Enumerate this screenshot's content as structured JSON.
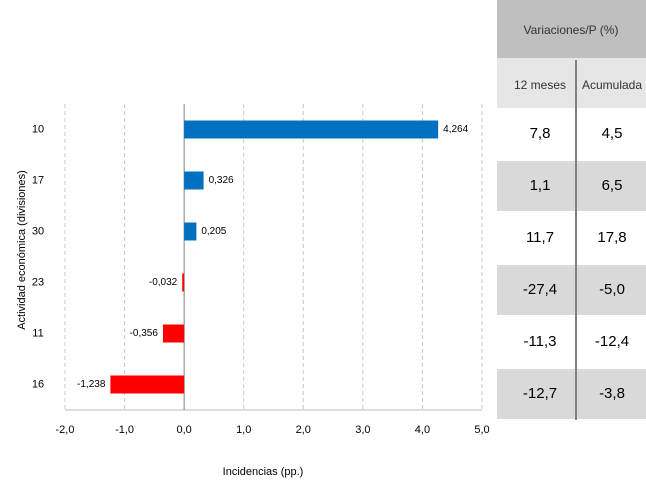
{
  "chart_data": {
    "type": "barh",
    "categories": [
      "10",
      "17",
      "30",
      "23",
      "11",
      "16"
    ],
    "values": [
      4.264,
      0.326,
      0.205,
      -0.032,
      -0.356,
      -1.238
    ],
    "value_labels": [
      "4,264",
      "0,326",
      "0,205",
      "-0,032",
      "-0,356",
      "-1,238"
    ],
    "positive_color": "#0070c0",
    "negative_color": "#ff0000",
    "xlim": [
      -2,
      5
    ],
    "xticks": [
      {
        "value": -2,
        "label": "-2,0"
      },
      {
        "value": -1,
        "label": "-1,0"
      },
      {
        "value": 0,
        "label": "0,0"
      },
      {
        "value": 1,
        "label": "1,0"
      },
      {
        "value": 2,
        "label": "2,0"
      },
      {
        "value": 3,
        "label": "3,0"
      },
      {
        "value": 4,
        "label": "4,0"
      },
      {
        "value": 5,
        "label": "5,0"
      }
    ],
    "xlabel": "Incidencias (pp.)",
    "ylabel": "Actividad económica (divisiones)",
    "grid": true
  },
  "table": {
    "title": "Variaciones/P (%)",
    "columns": [
      "12 meses",
      "Acumulada"
    ],
    "rows": [
      [
        "7,8",
        "4,5"
      ],
      [
        "1,1",
        "6,5"
      ],
      [
        "11,7",
        "17,8"
      ],
      [
        "-27,4",
        "-5,0"
      ],
      [
        "-11,3",
        "-12,4"
      ],
      [
        "-12,7",
        "-3,8"
      ]
    ]
  }
}
